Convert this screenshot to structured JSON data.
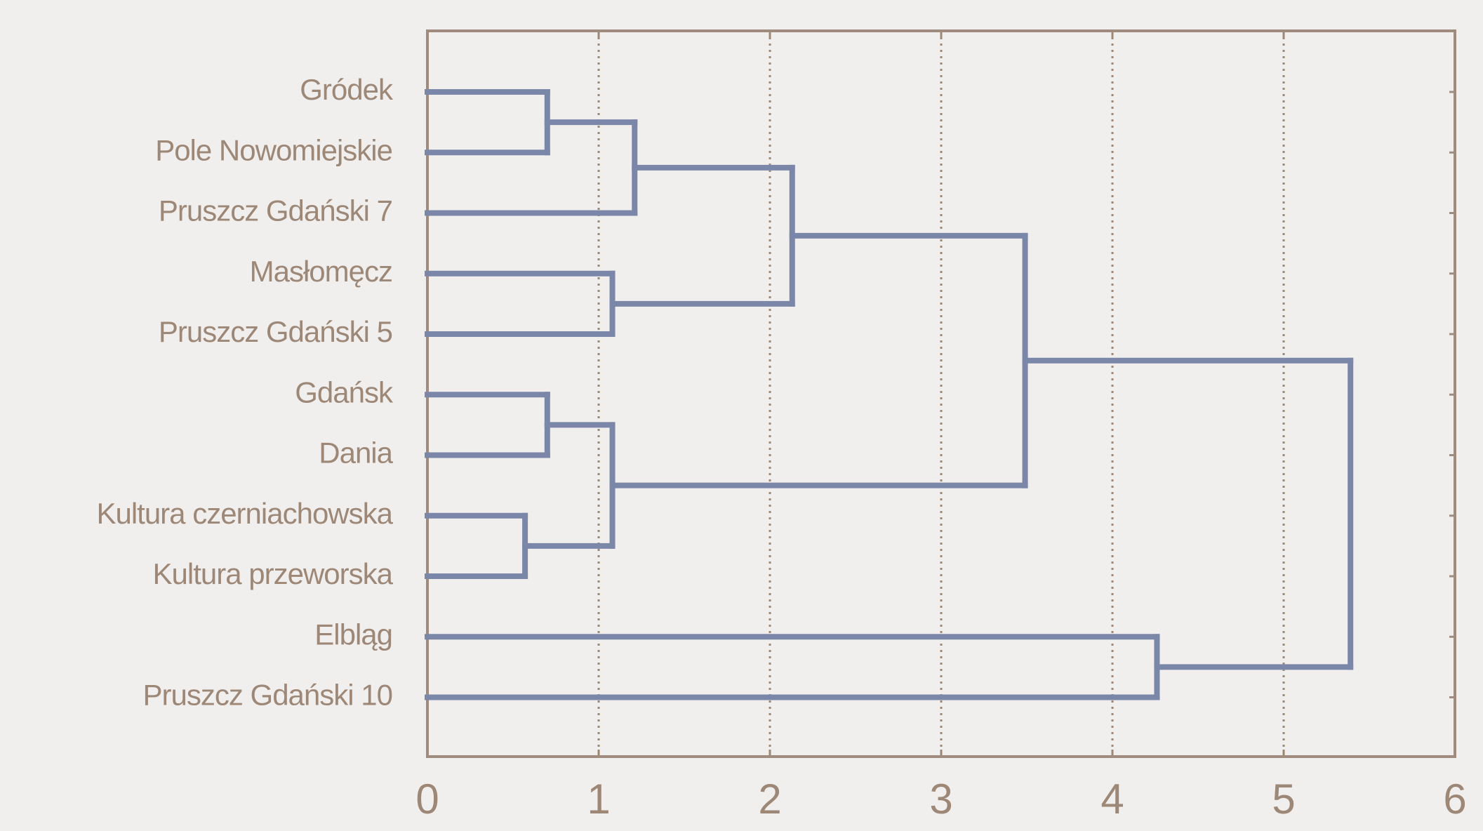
{
  "chart_data": {
    "type": "dendrogram",
    "color": "#7b87a8",
    "xlim": [
      0,
      6
    ],
    "xticks": [
      0,
      1,
      2,
      3,
      4,
      5,
      6
    ],
    "grid": true,
    "tree": {
      "height": 5.39,
      "children": [
        {
          "height": 3.49,
          "children": [
            {
              "height": 2.13,
              "children": [
                {
                  "height": 1.21,
                  "children": [
                    {
                      "height": 0.7,
                      "children": [
                        {
                          "label": "Gródek"
                        },
                        {
                          "label": "Pole Nowomiejskie"
                        }
                      ]
                    },
                    {
                      "label": "Pruszcz Gdański 7"
                    }
                  ]
                },
                {
                  "height": 1.08,
                  "children": [
                    {
                      "label": "Masłomęcz"
                    },
                    {
                      "label": "Pruszcz Gdański 5"
                    }
                  ]
                }
              ]
            },
            {
              "height": 1.08,
              "children": [
                {
                  "height": 0.7,
                  "children": [
                    {
                      "label": "Gdańsk"
                    },
                    {
                      "label": "Dania"
                    }
                  ]
                },
                {
                  "height": 0.57,
                  "children": [
                    {
                      "label": "Kultura czerniachowska"
                    },
                    {
                      "label": "Kultura przeworska"
                    }
                  ]
                }
              ]
            }
          ]
        },
        {
          "height": 4.26,
          "children": [
            {
              "label": "Elbląg"
            },
            {
              "label": "Pruszcz Gdański 10"
            }
          ]
        }
      ]
    }
  }
}
